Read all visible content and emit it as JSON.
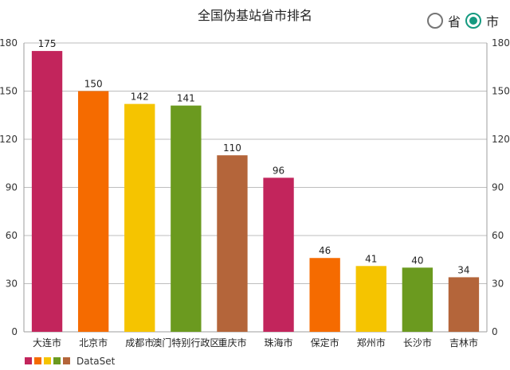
{
  "title": "全国伪基站省市排名",
  "toggle": {
    "options": [
      {
        "label": "省",
        "checked": false
      },
      {
        "label": "市",
        "checked": true
      }
    ],
    "accent_color": "#159a80"
  },
  "legend": {
    "label": "DataSet"
  },
  "chart_data": {
    "type": "bar",
    "title": "全国伪基站省市排名",
    "categories": [
      "大连市",
      "北京市",
      "成都市",
      "澳门特别行政区",
      "重庆市",
      "珠海市",
      "保定市",
      "郑州市",
      "长沙市",
      "吉林市"
    ],
    "series": [
      {
        "name": "DataSet",
        "values": [
          175,
          150,
          142,
          141,
          110,
          96,
          46,
          41,
          40,
          34
        ],
        "colors": [
          "#c2255c",
          "#f56b00",
          "#f5c400",
          "#6b9a1f",
          "#b4653a"
        ]
      }
    ],
    "ylim": [
      0,
      180
    ],
    "yticks": [
      0,
      30,
      60,
      90,
      120,
      150,
      180
    ],
    "grid": true,
    "legend_position": "bottom-left"
  }
}
